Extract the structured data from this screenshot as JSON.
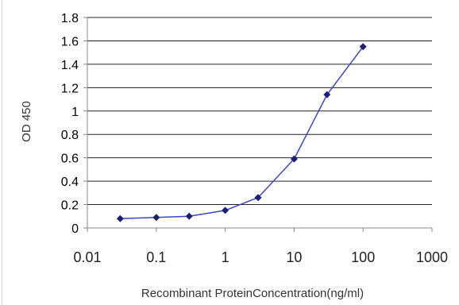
{
  "chart_data": {
    "type": "line",
    "title": "",
    "xlabel": "Recombinant ProteinConcentration(ng/ml)",
    "ylabel": "OD 450",
    "xscale": "log",
    "xlim": [
      0.01,
      1000
    ],
    "ylim": [
      0,
      1.8
    ],
    "grid": "horizontal",
    "legend": "none",
    "xticks": [
      "0.01",
      "0.1",
      "1",
      "10",
      "100",
      "1000"
    ],
    "yticks": [
      "0",
      "0.2",
      "0.4",
      "0.6",
      "0.8",
      "1",
      "1.2",
      "1.4",
      "1.6",
      "1.8"
    ],
    "series": [
      {
        "x": [
          0.03,
          0.1,
          0.3,
          1,
          3,
          10,
          30,
          100
        ],
        "y": [
          0.08,
          0.09,
          0.1,
          0.15,
          0.26,
          0.59,
          1.14,
          1.55
        ]
      }
    ],
    "colors": {
      "line": "#3b45d0",
      "marker": "#1c1f7a",
      "grid": "#222222",
      "axis": "#888888"
    }
  }
}
